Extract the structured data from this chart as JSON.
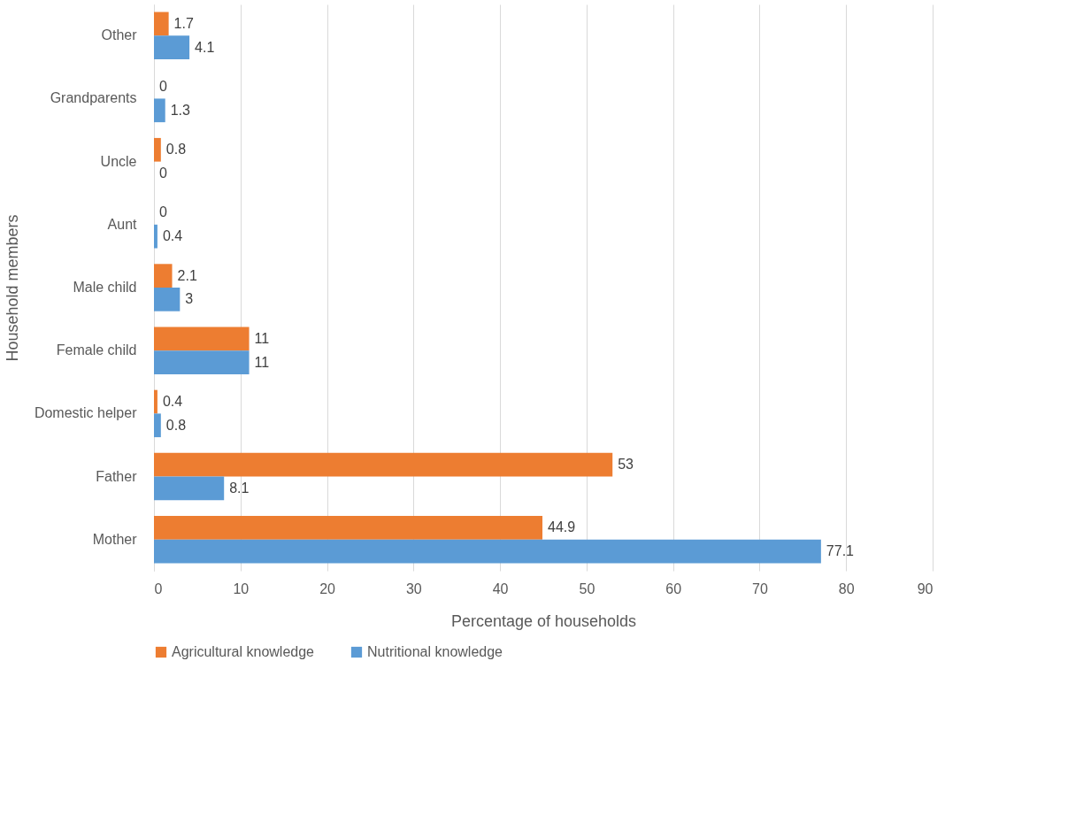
{
  "chart_data": {
    "type": "bar",
    "orientation": "horizontal",
    "xlabel": "Percentage of households",
    "ylabel": "Household members",
    "categories": [
      "Other",
      "Grandparents",
      "Uncle",
      "Aunt",
      "Male child",
      "Female child",
      "Domestic helper",
      "Father",
      "Mother"
    ],
    "series": [
      {
        "name": "Agricultural knowledge",
        "color": "#ed7d31",
        "values": [
          1.7,
          0,
          0.8,
          0,
          2.1,
          11,
          0.4,
          53,
          44.9
        ]
      },
      {
        "name": "Nutritional knowledge",
        "color": "#5b9bd5",
        "values": [
          4.1,
          1.3,
          0,
          0.4,
          3,
          11,
          0.8,
          8.1,
          77.1
        ]
      }
    ],
    "xlim": [
      0,
      90
    ],
    "xticks": [
      0,
      10,
      20,
      30,
      40,
      50,
      60,
      70,
      80,
      90
    ],
    "grid": "x",
    "legend": "bottom",
    "data_labels": true
  }
}
